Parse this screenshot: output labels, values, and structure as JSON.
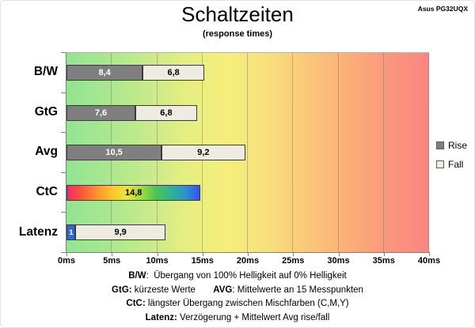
{
  "header": {
    "title": "Schaltzeiten",
    "subtitle": "(response times)",
    "device": "Asus PG32UQX"
  },
  "chart_data": {
    "type": "bar",
    "orientation": "horizontal",
    "unit": "ms",
    "xlim": [
      0,
      40
    ],
    "x_ticks": [
      0,
      5,
      10,
      15,
      20,
      25,
      30,
      35,
      40
    ],
    "x_tick_labels": [
      "0ms",
      "5ms",
      "10ms",
      "15ms",
      "20ms",
      "25ms",
      "30ms",
      "35ms",
      "40ms"
    ],
    "grid": true,
    "legend_position": "right",
    "categories": [
      "B/W",
      "GtG",
      "Avg",
      "CtC",
      "Latenz"
    ],
    "series": [
      {
        "name": "Rise",
        "values": [
          8.4,
          7.6,
          10.5,
          null,
          null
        ]
      },
      {
        "name": "Fall",
        "values": [
          6.8,
          6.8,
          9.2,
          null,
          9.9
        ]
      },
      {
        "name": "CtC",
        "values": [
          null,
          null,
          null,
          14.8,
          null
        ]
      },
      {
        "name": "Verzögerung",
        "values": [
          null,
          null,
          null,
          null,
          1
        ]
      }
    ],
    "rows": [
      {
        "category": "B/W",
        "segments": [
          {
            "series": "Rise",
            "value": 8.4,
            "label": "8,4",
            "style": "rise"
          },
          {
            "series": "Fall",
            "value": 6.8,
            "label": "6,8",
            "style": "fall"
          }
        ]
      },
      {
        "category": "GtG",
        "segments": [
          {
            "series": "Rise",
            "value": 7.6,
            "label": "7,6",
            "style": "rise"
          },
          {
            "series": "Fall",
            "value": 6.8,
            "label": "6,8",
            "style": "fall"
          }
        ]
      },
      {
        "category": "Avg",
        "segments": [
          {
            "series": "Rise",
            "value": 10.5,
            "label": "10,5",
            "style": "rise"
          },
          {
            "series": "Fall",
            "value": 9.2,
            "label": "9,2",
            "style": "fall"
          }
        ]
      },
      {
        "category": "CtC",
        "segments": [
          {
            "series": "CtC",
            "value": 14.8,
            "label": "14,8",
            "style": "rainbow"
          }
        ]
      },
      {
        "category": "Latenz",
        "segments": [
          {
            "series": "Verzögerung",
            "value": 1,
            "label": "1",
            "style": "delay"
          },
          {
            "series": "Fall",
            "value": 9.9,
            "label": "9,9",
            "style": "fall"
          }
        ]
      }
    ],
    "legend": [
      {
        "label": "Rise",
        "style": "rise"
      },
      {
        "label": "Fall",
        "style": "fall"
      }
    ],
    "colors": {
      "rise": "#7f7f7f",
      "fall": "#eeece0",
      "delay": "#2a6ae0",
      "bar_border": "#3a3a3a",
      "rainbow_gradient": [
        "#f4266e",
        "#fb5a38",
        "#fd9130",
        "#fec32b",
        "#ece43a",
        "#a5db3e",
        "#50c455",
        "#2fb390",
        "#2f93cb",
        "#3852f3"
      ],
      "plot_gradient": [
        "#93e493",
        "#a9e78f",
        "#c7ea8b",
        "#e6ee82",
        "#f5ee7b",
        "#f8df7d",
        "#fac77a",
        "#fbaf79",
        "#fb977d",
        "#fb8583"
      ],
      "grid": "#8c8c78"
    }
  },
  "footnotes": {
    "lines": [
      {
        "segments": [
          {
            "text": "B/W",
            "bold": true
          },
          {
            "text": ":  Übergang von 100% Helligkeit auf 0% Helligkeit",
            "bold": false
          }
        ]
      },
      {
        "segments": [
          {
            "text": "GtG:",
            "bold": true
          },
          {
            "text": " kürzeste Werte       ",
            "bold": false
          },
          {
            "text": "AVG",
            "bold": true
          },
          {
            "text": ": Mittelwerte an 15 Messpunkten",
            "bold": false
          }
        ]
      },
      {
        "segments": [
          {
            "text": "CtC:",
            "bold": true
          },
          {
            "text": " längster Übergang zwischen Mischfarben (C,M,Y)",
            "bold": false
          }
        ]
      },
      {
        "segments": [
          {
            "text": "Latenz:",
            "bold": true
          },
          {
            "text": " Verzögerung + Mittelwert Avg rise/fall",
            "bold": false
          }
        ]
      }
    ]
  }
}
